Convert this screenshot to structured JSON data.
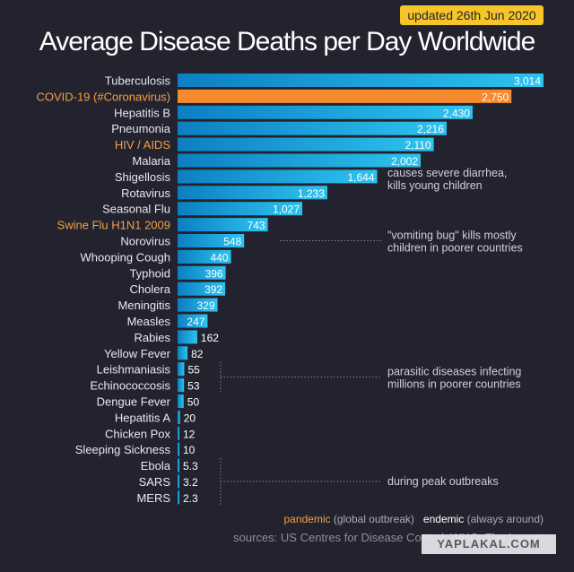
{
  "badge": "updated 26th Jun 2020",
  "colors": {
    "background": "#23232f",
    "bar_gradient_start": "#0c7fc2",
    "bar_gradient_end": "#2dc3ef",
    "covid_bar": "#f58a2e",
    "highlight_label": "#f5a040",
    "badge": "#f5c52a"
  },
  "chart_data": {
    "type": "bar",
    "orientation": "horizontal",
    "title": "Average Disease Deaths per Day Worldwide",
    "categories": [
      "Tuberculosis",
      "COVID-19 (#Coronavirus)",
      "Hepatitis B",
      "Pneumonia",
      "HIV / AIDS",
      "Malaria",
      "Shigellosis",
      "Rotavirus",
      "Seasonal Flu",
      "Swine Flu H1N1 2009",
      "Norovirus",
      "Whooping Cough",
      "Typhoid",
      "Cholera",
      "Meningitis",
      "Measles",
      "Rabies",
      "Yellow Fever",
      "Leishmaniasis",
      "Echinococcosis",
      "Dengue Fever",
      "Hepatitis A",
      "Chicken Pox",
      "Sleeping Sickness",
      "Ebola",
      "SARS",
      "MERS"
    ],
    "values": [
      3014,
      2750,
      2430,
      2216,
      2110,
      2002,
      1644,
      1233,
      1027,
      743,
      548,
      440,
      396,
      392,
      329,
      247,
      162,
      82,
      55,
      53,
      50,
      20,
      12,
      10,
      5.3,
      3.2,
      2.3
    ],
    "value_labels": [
      "3,014",
      "2,750",
      "2,430",
      "2,216",
      "2,110",
      "2,002",
      "1,644",
      "1,233",
      "1,027",
      "743",
      "548",
      "440",
      "396",
      "392",
      "329",
      "247",
      "162",
      "82",
      "55",
      "53",
      "50",
      "20",
      "12",
      "10",
      "5.3",
      "3.2",
      "2.3"
    ],
    "pandemic": [
      "COVID-19 (#Coronavirus)",
      "HIV / AIDS",
      "Swine Flu H1N1 2009"
    ],
    "xlim": [
      0,
      3014
    ],
    "grid": false,
    "annotations": [
      {
        "text": [
          "causes severe diarrhea,",
          "kills young children"
        ],
        "target": [
          "Shigellosis"
        ]
      },
      {
        "text": [
          "\"vomiting bug\" kills mostly",
          "children in poorer countries"
        ],
        "target": [
          "Norovirus"
        ]
      },
      {
        "text": [
          "parasitic diseases infecting",
          "millions in poorer countries"
        ],
        "target": [
          "Leishmaniasis",
          "Echinococcosis"
        ]
      },
      {
        "text": [
          "during peak outbreaks"
        ],
        "target": [
          "Ebola",
          "SARS",
          "MERS"
        ]
      }
    ]
  },
  "legend": {
    "pandemic": "pandemic",
    "pandemic_desc": "(global outbreak)",
    "endemic": "endemic",
    "endemic_desc": "(always around)"
  },
  "sources": "sources: US Centres for Disease Control, WHO, The Lancet",
  "watermark": "YAPLAKAL.COM"
}
